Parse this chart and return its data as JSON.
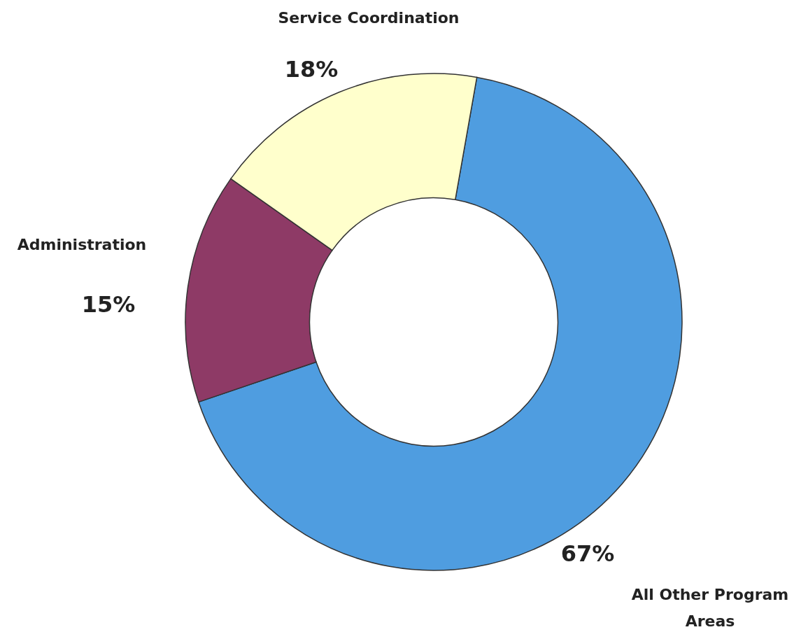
{
  "chart_data": {
    "type": "donut",
    "categories": [
      "All Other Program Areas",
      "Administration",
      "Service Coordination"
    ],
    "values": [
      67,
      15,
      18
    ],
    "colors": [
      "#4f9de0",
      "#8e3a66",
      "#ffffcc"
    ],
    "value_labels": [
      "67%",
      "15%",
      "18%"
    ]
  }
}
